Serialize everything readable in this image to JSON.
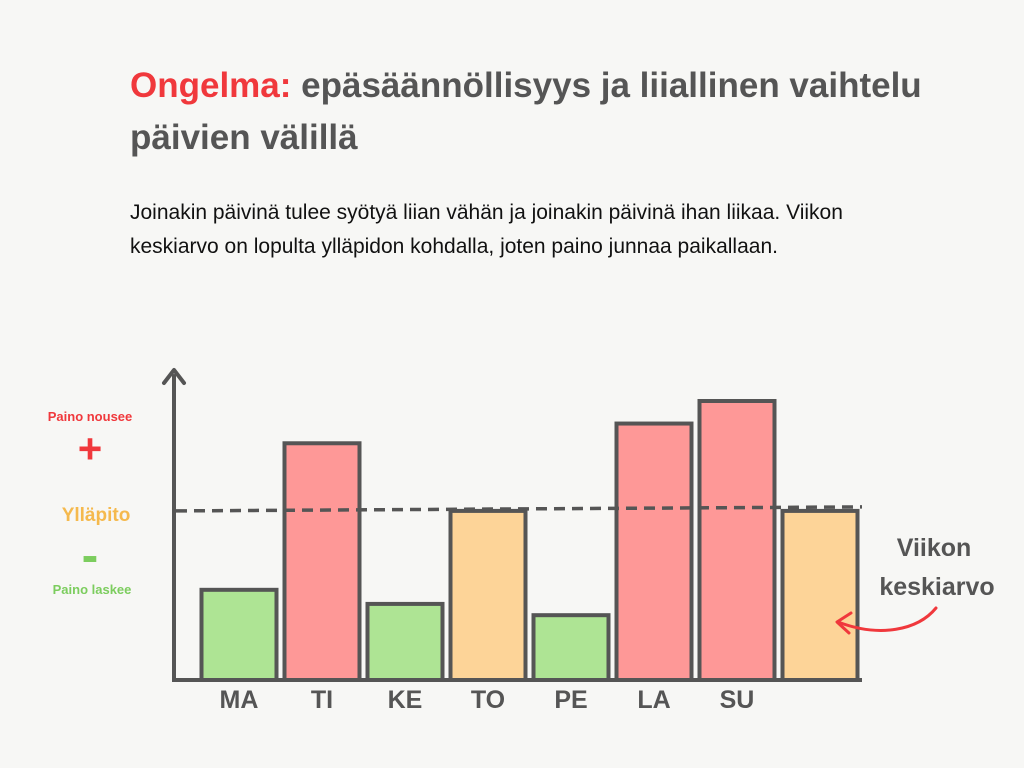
{
  "title": {
    "accent": "Ongelma:",
    "rest": "epäsäännöllisyys ja liiallinen vaihtelu päivien välillä"
  },
  "body_text": "Joinakin päivinä tulee syötyä liian vähän ja joinakin päivinä ihan liikaa. Viikon keskiarvo on lopulta ylläpidon kohdalla, joten paino junnaa paikallaan.",
  "legend": {
    "up_label": "Paino nousee",
    "up_symbol": "+",
    "maintain_label": "Ylläpito",
    "down_symbol": "-",
    "down_label": "Paino laskee"
  },
  "average_annotation": [
    "Viikon",
    "keskiarvo"
  ],
  "colors": {
    "red_text": "#f0383c",
    "orange_text": "#f5b94d",
    "green_text": "#7ccd5e",
    "bar_red": "#fe9897",
    "bar_orange": "#fdd498",
    "bar_green": "#aee494",
    "outline": "#555555",
    "arrow": "#f0383c"
  },
  "chart_data": {
    "type": "bar",
    "categories": [
      "MA",
      "TI",
      "KE",
      "TO",
      "PE",
      "LA",
      "SU",
      ""
    ],
    "values": [
      -28,
      24,
      -33,
      0,
      -37,
      31,
      39,
      0
    ],
    "bar_colors": [
      "green",
      "red",
      "green",
      "orange",
      "green",
      "red",
      "red",
      "orange"
    ],
    "reference_line": {
      "value": 0,
      "style": "dashed"
    },
    "ylim": [
      -60,
      50
    ],
    "title": "",
    "xlabel": "",
    "ylabel": ""
  }
}
